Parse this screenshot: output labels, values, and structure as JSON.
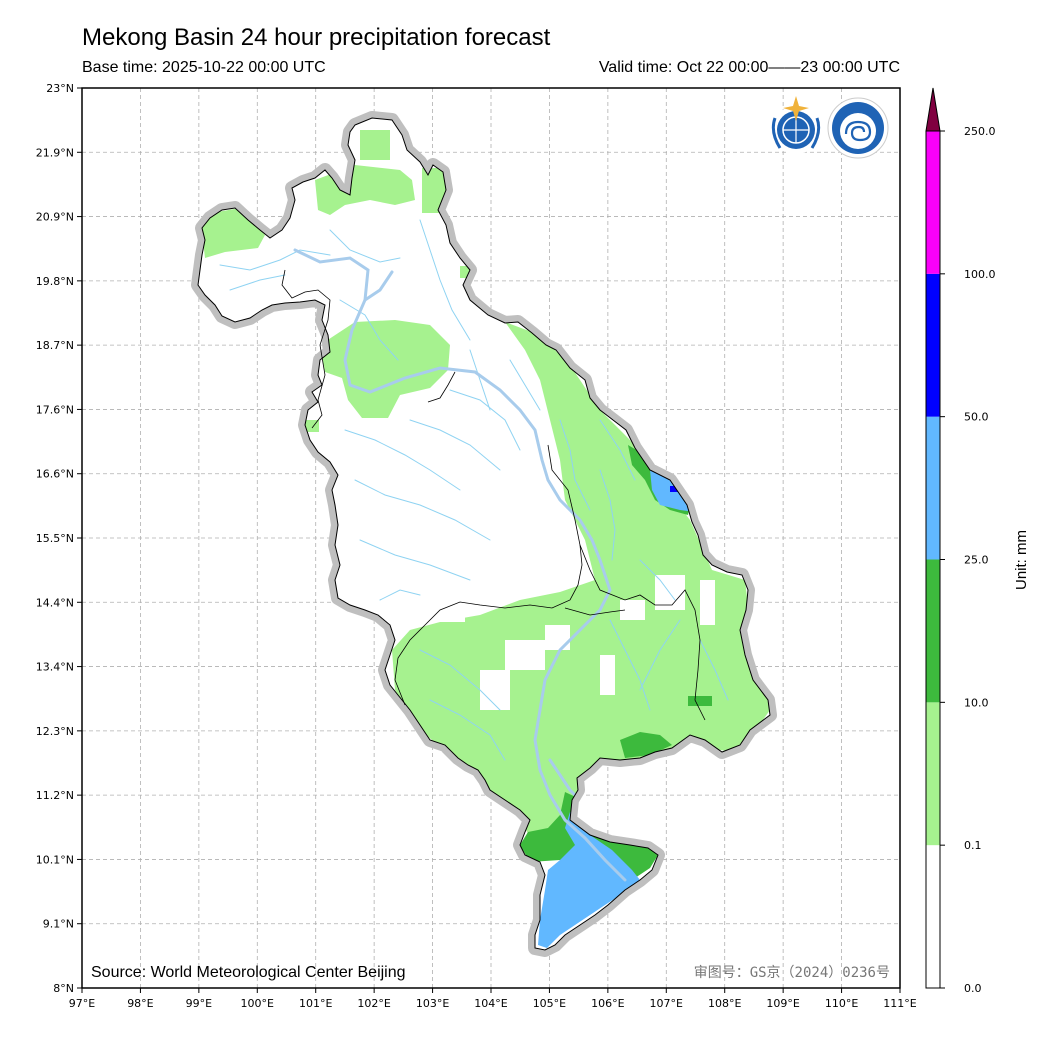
{
  "header": {
    "title": "Mekong Basin 24 hour precipitation forecast",
    "base_time": "Base time: 2025-10-22 00:00 UTC",
    "valid_time": "Valid time: Oct 22 00:00——23 00:00 UTC"
  },
  "map": {
    "lon_ticks": [
      "97°E",
      "98°E",
      "99°E",
      "100°E",
      "101°E",
      "102°E",
      "103°E",
      "104°E",
      "105°E",
      "106°E",
      "107°E",
      "108°E",
      "109°E",
      "110°E",
      "111°E"
    ],
    "lat_ticks": [
      "23°N",
      "21.9°N",
      "20.9°N",
      "19.8°N",
      "18.7°N",
      "17.6°N",
      "16.6°N",
      "15.5°N",
      "14.4°N",
      "13.4°N",
      "12.3°N",
      "11.2°N",
      "10.1°N",
      "9.1°N",
      "8°N"
    ],
    "source_note": "Source: World Meteorological Center Beijing",
    "approval_number": "审图号：GS京（2024）0236号",
    "logos": [
      "wmo-logo",
      "cma-logo"
    ]
  },
  "colorbar": {
    "unit_label": "Unit: mm",
    "levels": [
      "0.0",
      "0.1",
      "10.0",
      "25.0",
      "50.0",
      "100.0",
      "250.0"
    ],
    "colors": [
      "#ffffff",
      "#a6f28f",
      "#3dba3d",
      "#61b8ff",
      "#0000ff",
      "#fa00fa",
      "#800040"
    ]
  }
}
